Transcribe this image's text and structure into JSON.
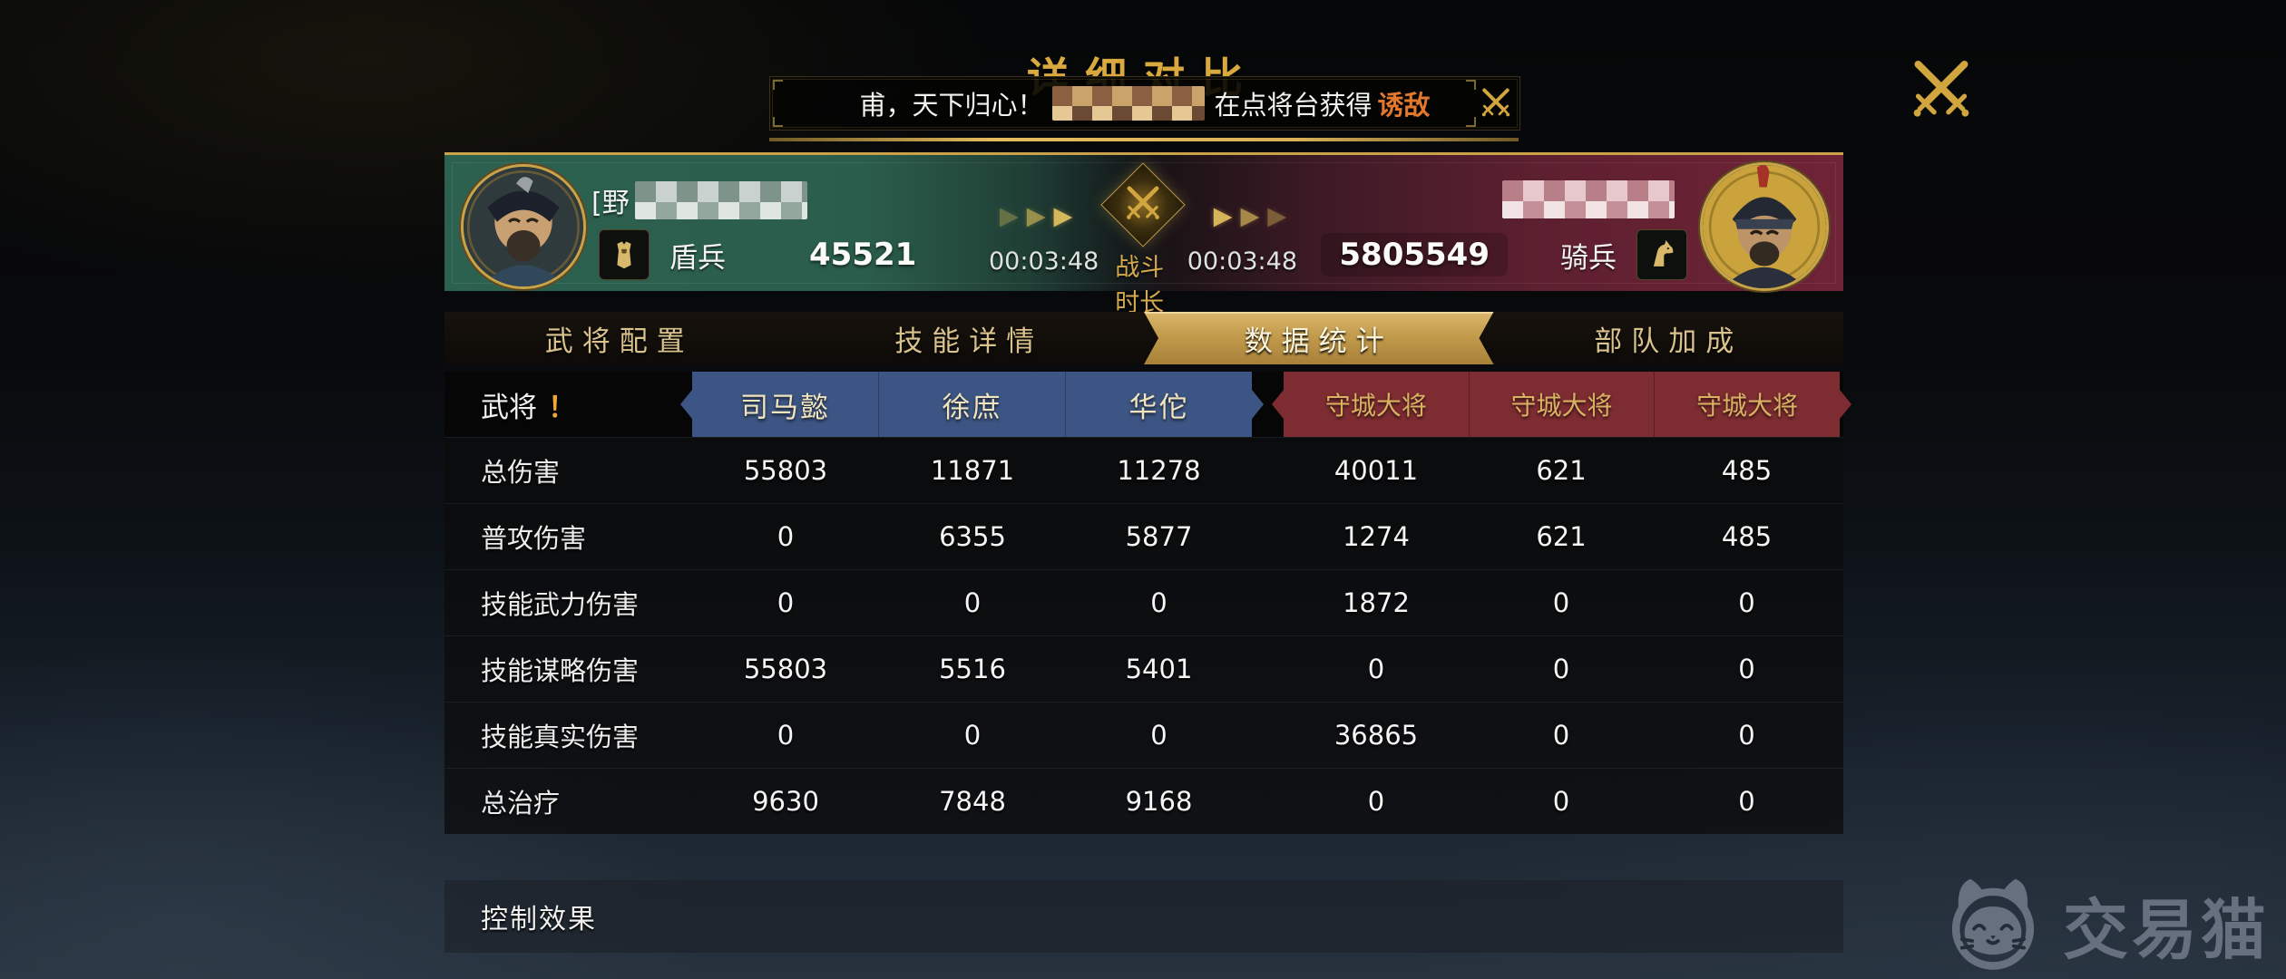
{
  "page": {
    "title": "详细对比"
  },
  "announcement": {
    "text": "甫，天下归心！",
    "suffix": "在点将台获得",
    "highlight": "诱敌"
  },
  "battle_header": {
    "left": {
      "name_prefix": "[野",
      "troop_label": "盾兵",
      "troop_value": "45521"
    },
    "center": {
      "duration_left": "00:03:48",
      "duration_label": "战斗时长",
      "duration_right": "00:03:48"
    },
    "right": {
      "troop_value": "5805549",
      "troop_label": "骑兵"
    }
  },
  "tabs": [
    {
      "label": "武将配置",
      "active": false
    },
    {
      "label": "技能详情",
      "active": false
    },
    {
      "label": "数据统计",
      "active": true
    },
    {
      "label": "部队加成",
      "active": false
    }
  ],
  "stats": {
    "corner_label": "武将",
    "corner_mark": "！",
    "ally_columns": [
      "司马懿",
      "徐庶",
      "华佗"
    ],
    "enemy_columns": [
      "守城大将",
      "守城大将",
      "守城大将"
    ],
    "rows": [
      {
        "label": "总伤害",
        "values": [
          "55803",
          "11871",
          "11278",
          "40011",
          "621",
          "485"
        ]
      },
      {
        "label": "普攻伤害",
        "values": [
          "0",
          "6355",
          "5877",
          "1274",
          "621",
          "485"
        ]
      },
      {
        "label": "技能武力伤害",
        "values": [
          "0",
          "0",
          "0",
          "1872",
          "0",
          "0"
        ]
      },
      {
        "label": "技能谋略伤害",
        "values": [
          "55803",
          "5516",
          "5401",
          "0",
          "0",
          "0"
        ]
      },
      {
        "label": "技能真实伤害",
        "values": [
          "0",
          "0",
          "0",
          "36865",
          "0",
          "0"
        ]
      },
      {
        "label": "总治疗",
        "values": [
          "9630",
          "7848",
          "9168",
          "0",
          "0",
          "0"
        ]
      }
    ],
    "footer_section": "控制效果"
  },
  "watermark": {
    "text": "交易猫"
  },
  "colors": {
    "ally_header": "#3d5584",
    "enemy_header": "#7d2c31",
    "ally_side_green": "#2d614f",
    "enemy_side_red": "#6f2336",
    "gold_accent": "#c9a24a",
    "highlight_orange": "#e2772e"
  }
}
